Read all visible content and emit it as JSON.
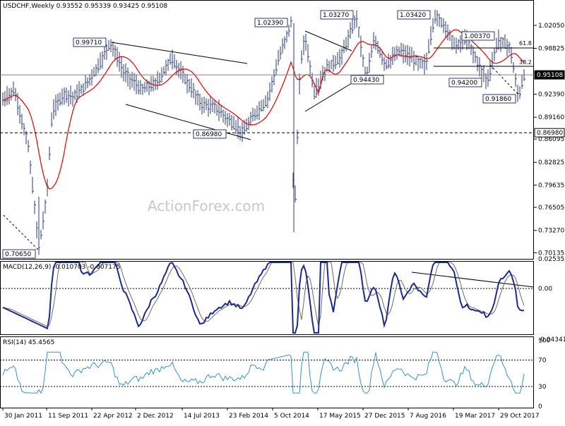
{
  "chart_data": {
    "type": "candlestick",
    "symbol": "USDCHF",
    "timeframe": "Weekly",
    "header": "USDCHF,Weekly  0.93552 0.95339 0.93425 0.95108",
    "ohlc": {
      "open": 0.93552,
      "high": 0.95339,
      "low": 0.93425,
      "close": 0.95108
    },
    "watermark": "ActionForex.com",
    "price_axis": {
      "ticks": [
        "1.02050",
        "0.98825",
        "0.95108",
        "0.92390",
        "0.89160",
        "0.86980",
        "0.86095",
        "0.82825",
        "0.79635",
        "0.76505",
        "0.73270",
        "0.70135"
      ],
      "range": [
        0.70135,
        1.04
      ]
    },
    "date_axis": [
      "30 Jan 2011",
      "11 Sep 2011",
      "22 Apr 2012",
      "2 Dec 2012",
      "14 Jul 2013",
      "23 Feb 2014",
      "5 Oct 2014",
      "17 May 2015",
      "27 Dec 2015",
      "7 Aug 2016",
      "19 Mar 2017",
      "29 Oct 2017"
    ],
    "annotations": [
      {
        "text": "0.70650",
        "value": 0.7065
      },
      {
        "text": "0.99710",
        "value": 0.9971
      },
      {
        "text": "0.86980",
        "value": 0.8698
      },
      {
        "text": "1.02390",
        "value": 1.0239
      },
      {
        "text": "1.03270",
        "value": 1.0327
      },
      {
        "text": "0.94430",
        "value": 0.9443
      },
      {
        "text": "1.03420",
        "value": 1.0342
      },
      {
        "text": "1.00370",
        "value": 1.0037
      },
      {
        "text": "0.94200",
        "value": 0.942
      },
      {
        "text": "0.91860",
        "value": 0.9186
      }
    ],
    "fib_labels": [
      "61.8",
      "38.2"
    ],
    "horizontal_levels": [
      {
        "text": "0.86980",
        "value": 0.8698,
        "style": "dashed"
      },
      {
        "text": "0.95108",
        "value": 0.95108,
        "style": "solid",
        "current": true
      }
    ],
    "moving_average_color": "#e00000",
    "macd": {
      "title": "MACD(12,26,9) -0.010703 -0.007175",
      "ticks": [
        "0.025353",
        "0.00",
        "-0.043419"
      ],
      "range": [
        -0.043419,
        0.025353
      ]
    },
    "rsi": {
      "title": "RSI(14) 45.4565",
      "ticks": [
        "100",
        "70",
        "30",
        "0"
      ],
      "levels": [
        70,
        30
      ]
    },
    "colors": {
      "price": "#2a3a78",
      "ma": "#e00000",
      "macd": "#1c2a8a",
      "signal": "#6a6a6a",
      "rsi": "#3a8fd0",
      "label_border": "#2a3a78"
    }
  }
}
